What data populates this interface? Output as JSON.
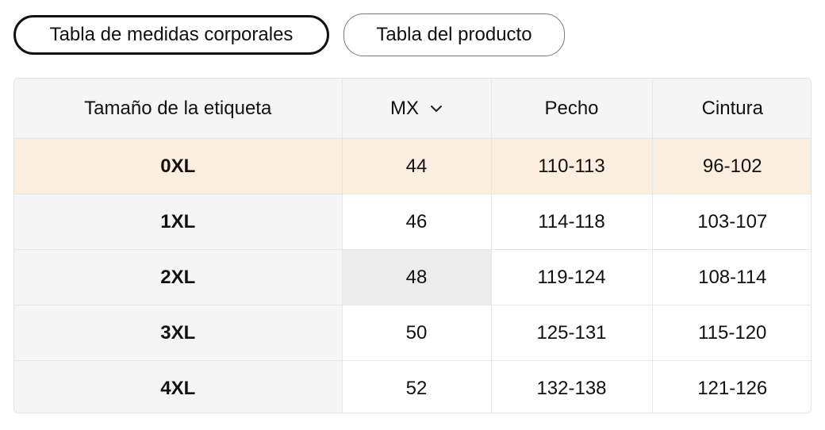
{
  "tabs": [
    {
      "label": "Tabla de medidas corporales",
      "active": true
    },
    {
      "label": "Tabla del producto",
      "active": false
    }
  ],
  "table": {
    "headers": {
      "size": "Tamaño de la etiqueta",
      "region": "MX",
      "region_icon": "chevron-down-icon",
      "chest": "Pecho",
      "waist": "Cintura"
    },
    "rows": [
      {
        "size": "0XL",
        "mx": "44",
        "chest": "110-113",
        "waist": "96-102"
      },
      {
        "size": "1XL",
        "mx": "46",
        "chest": "114-118",
        "waist": "103-107"
      },
      {
        "size": "2XL",
        "mx": "48",
        "chest": "119-124",
        "waist": "108-114"
      },
      {
        "size": "3XL",
        "mx": "50",
        "chest": "125-131",
        "waist": "115-120"
      },
      {
        "size": "4XL",
        "mx": "52",
        "chest": "132-138",
        "waist": "121-126"
      }
    ]
  },
  "colors": {
    "highlight_row": "#fdefe0",
    "header_bg": "#f5f5f5",
    "hover_cell": "#ececec",
    "active_border": "#111111"
  }
}
